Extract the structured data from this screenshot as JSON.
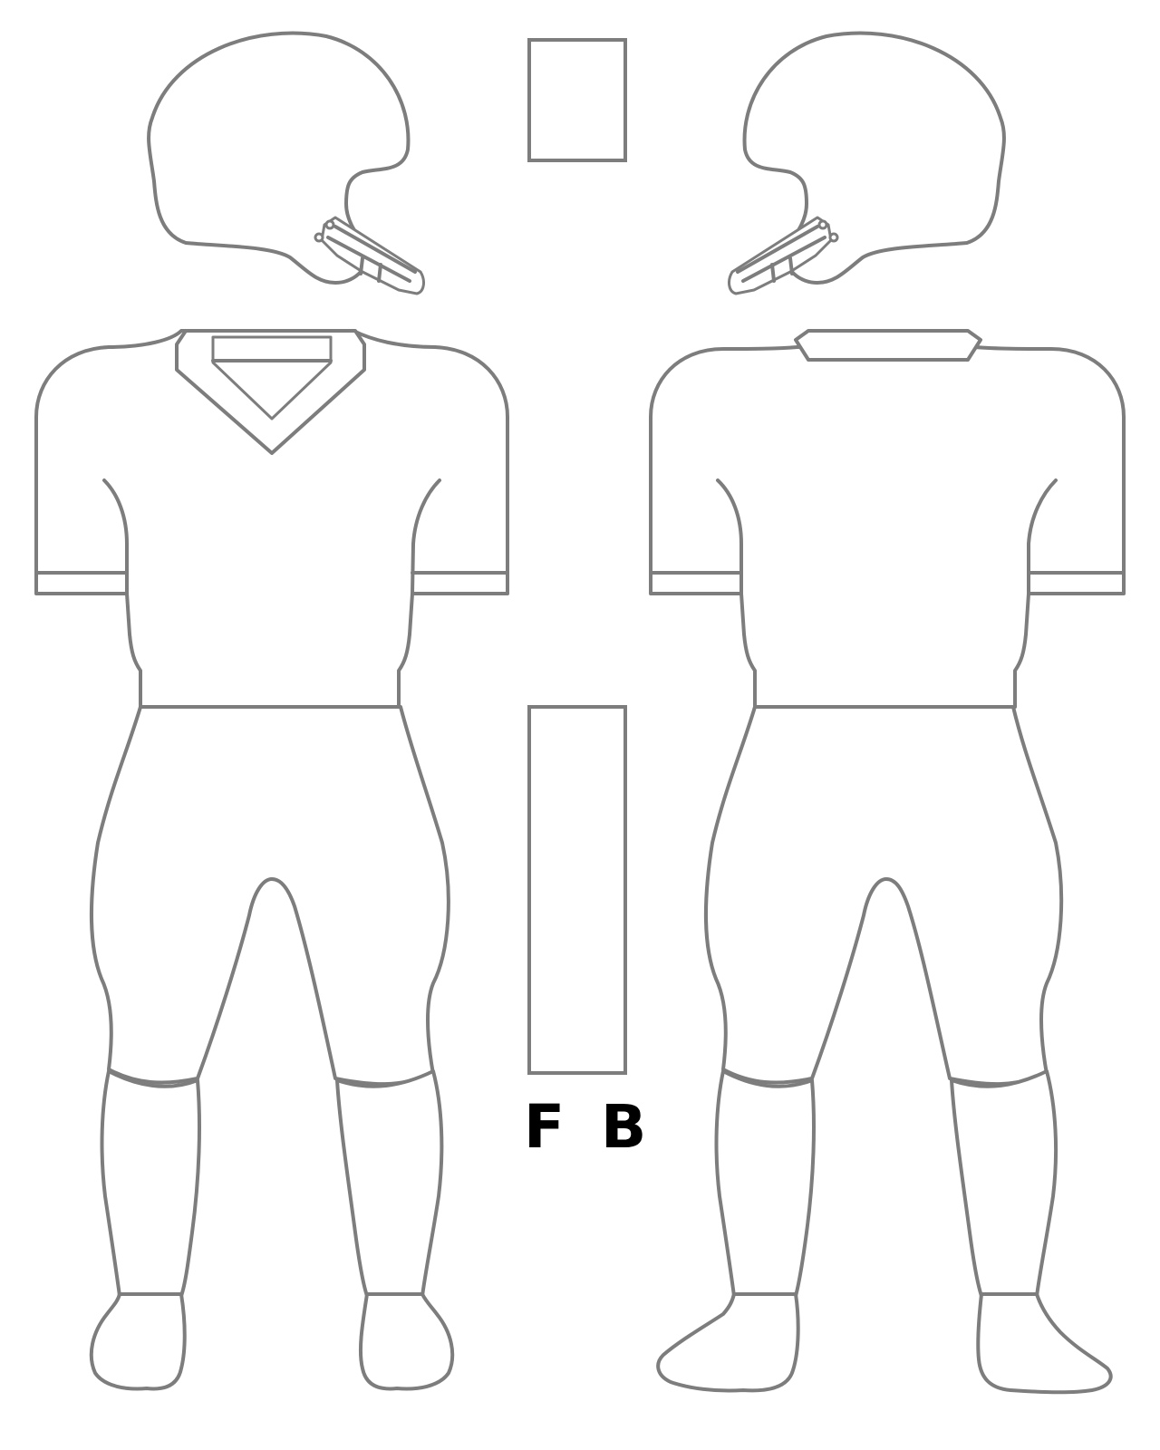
{
  "labels": {
    "front": "F",
    "back": "B"
  },
  "colors": {
    "outline": "#7d7d7d",
    "fill": "#ffffff",
    "text": "#000000"
  }
}
